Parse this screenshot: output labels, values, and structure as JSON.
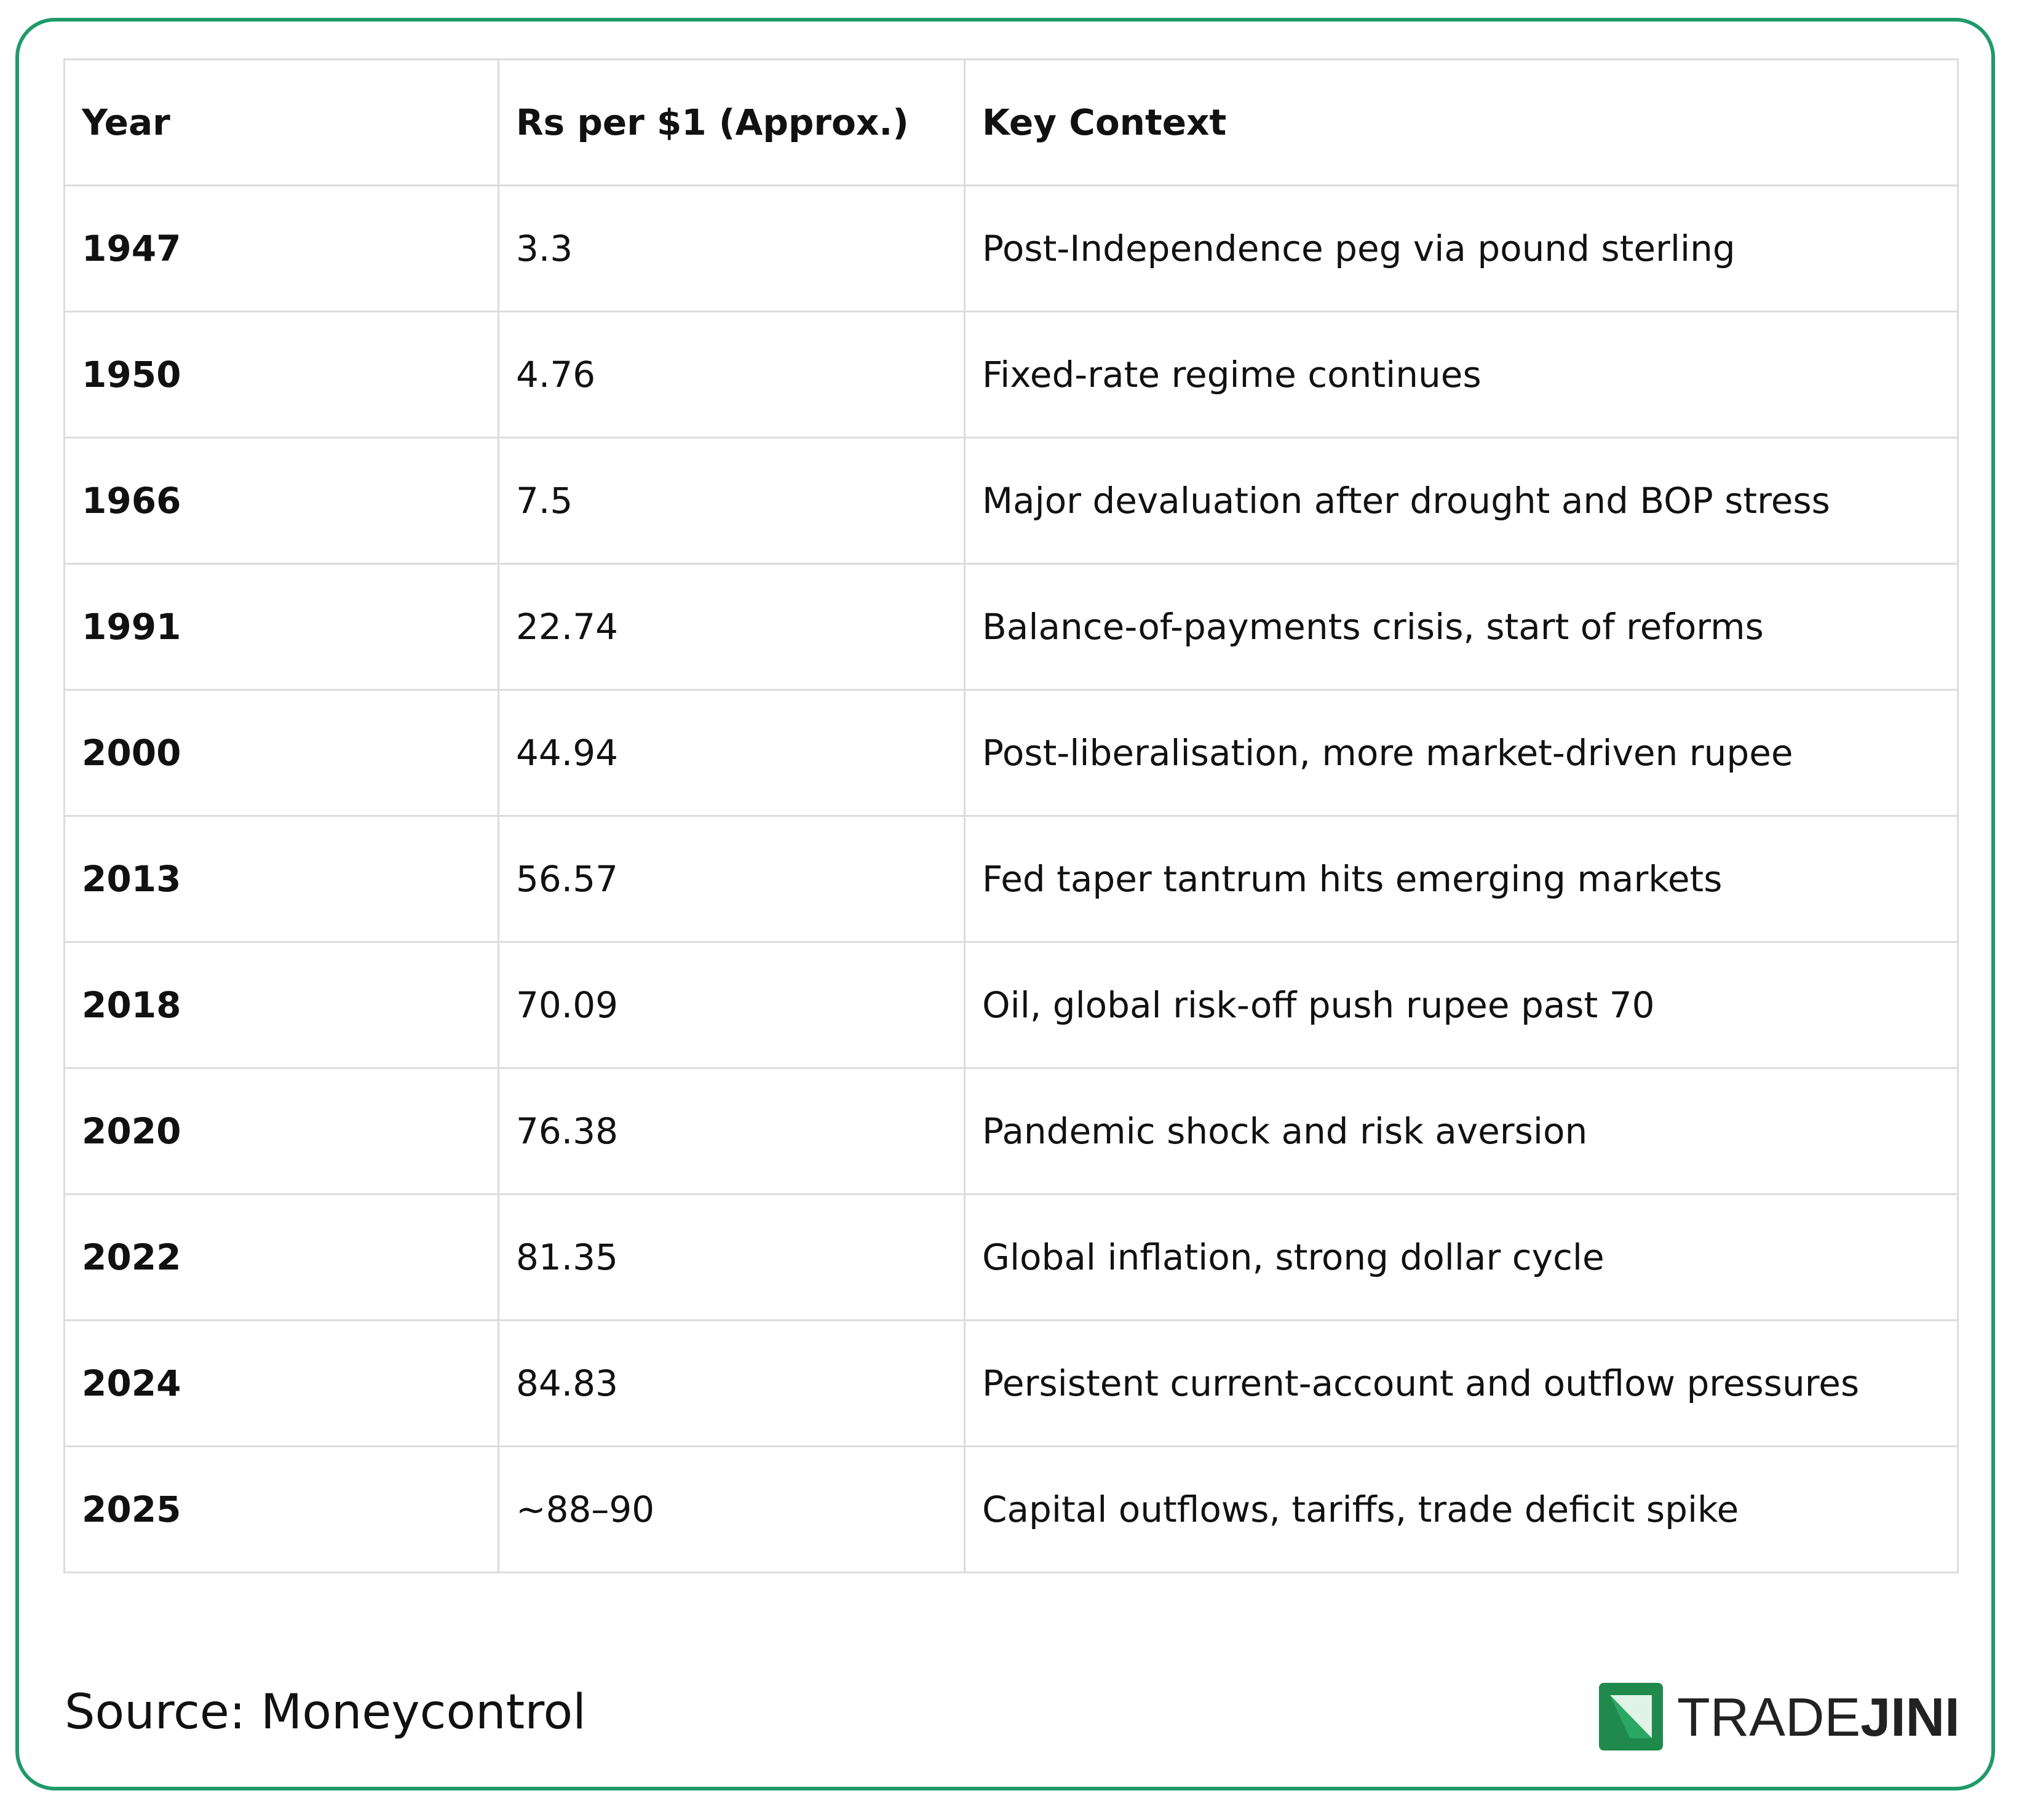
{
  "table": {
    "header": [
      "Year",
      "Rs per $1 (Approx.)",
      "Key Context"
    ],
    "rows": [
      [
        "1947",
        "3.3",
        "Post-Independence peg via pound sterling"
      ],
      [
        "1950",
        "4.76",
        "Fixed-rate regime continues"
      ],
      [
        "1966",
        "7.5",
        "Major devaluation after drought and BOP stress"
      ],
      [
        "1991",
        "22.74",
        "Balance-of-payments crisis, start of reforms"
      ],
      [
        "2000",
        "44.94",
        "Post-liberalisation, more market-driven rupee"
      ],
      [
        "2013",
        "56.57",
        "Fed taper tantrum hits emerging markets"
      ],
      [
        "2018",
        "70.09",
        "Oil, global risk-off push rupee past 70"
      ],
      [
        "2020",
        "76.38",
        "Pandemic shock and risk aversion"
      ],
      [
        "2022",
        "81.35",
        "Global inflation, strong dollar cycle"
      ],
      [
        "2024",
        "84.83",
        "Persistent current-account and outflow pressures"
      ],
      [
        "2025",
        "~88–90",
        "Capital outflows, tariffs, trade deficit spike"
      ]
    ]
  },
  "footer": {
    "source": "Source: Moneycontrol",
    "logo": {
      "light": "TRADE",
      "bold": "JINI"
    }
  }
}
